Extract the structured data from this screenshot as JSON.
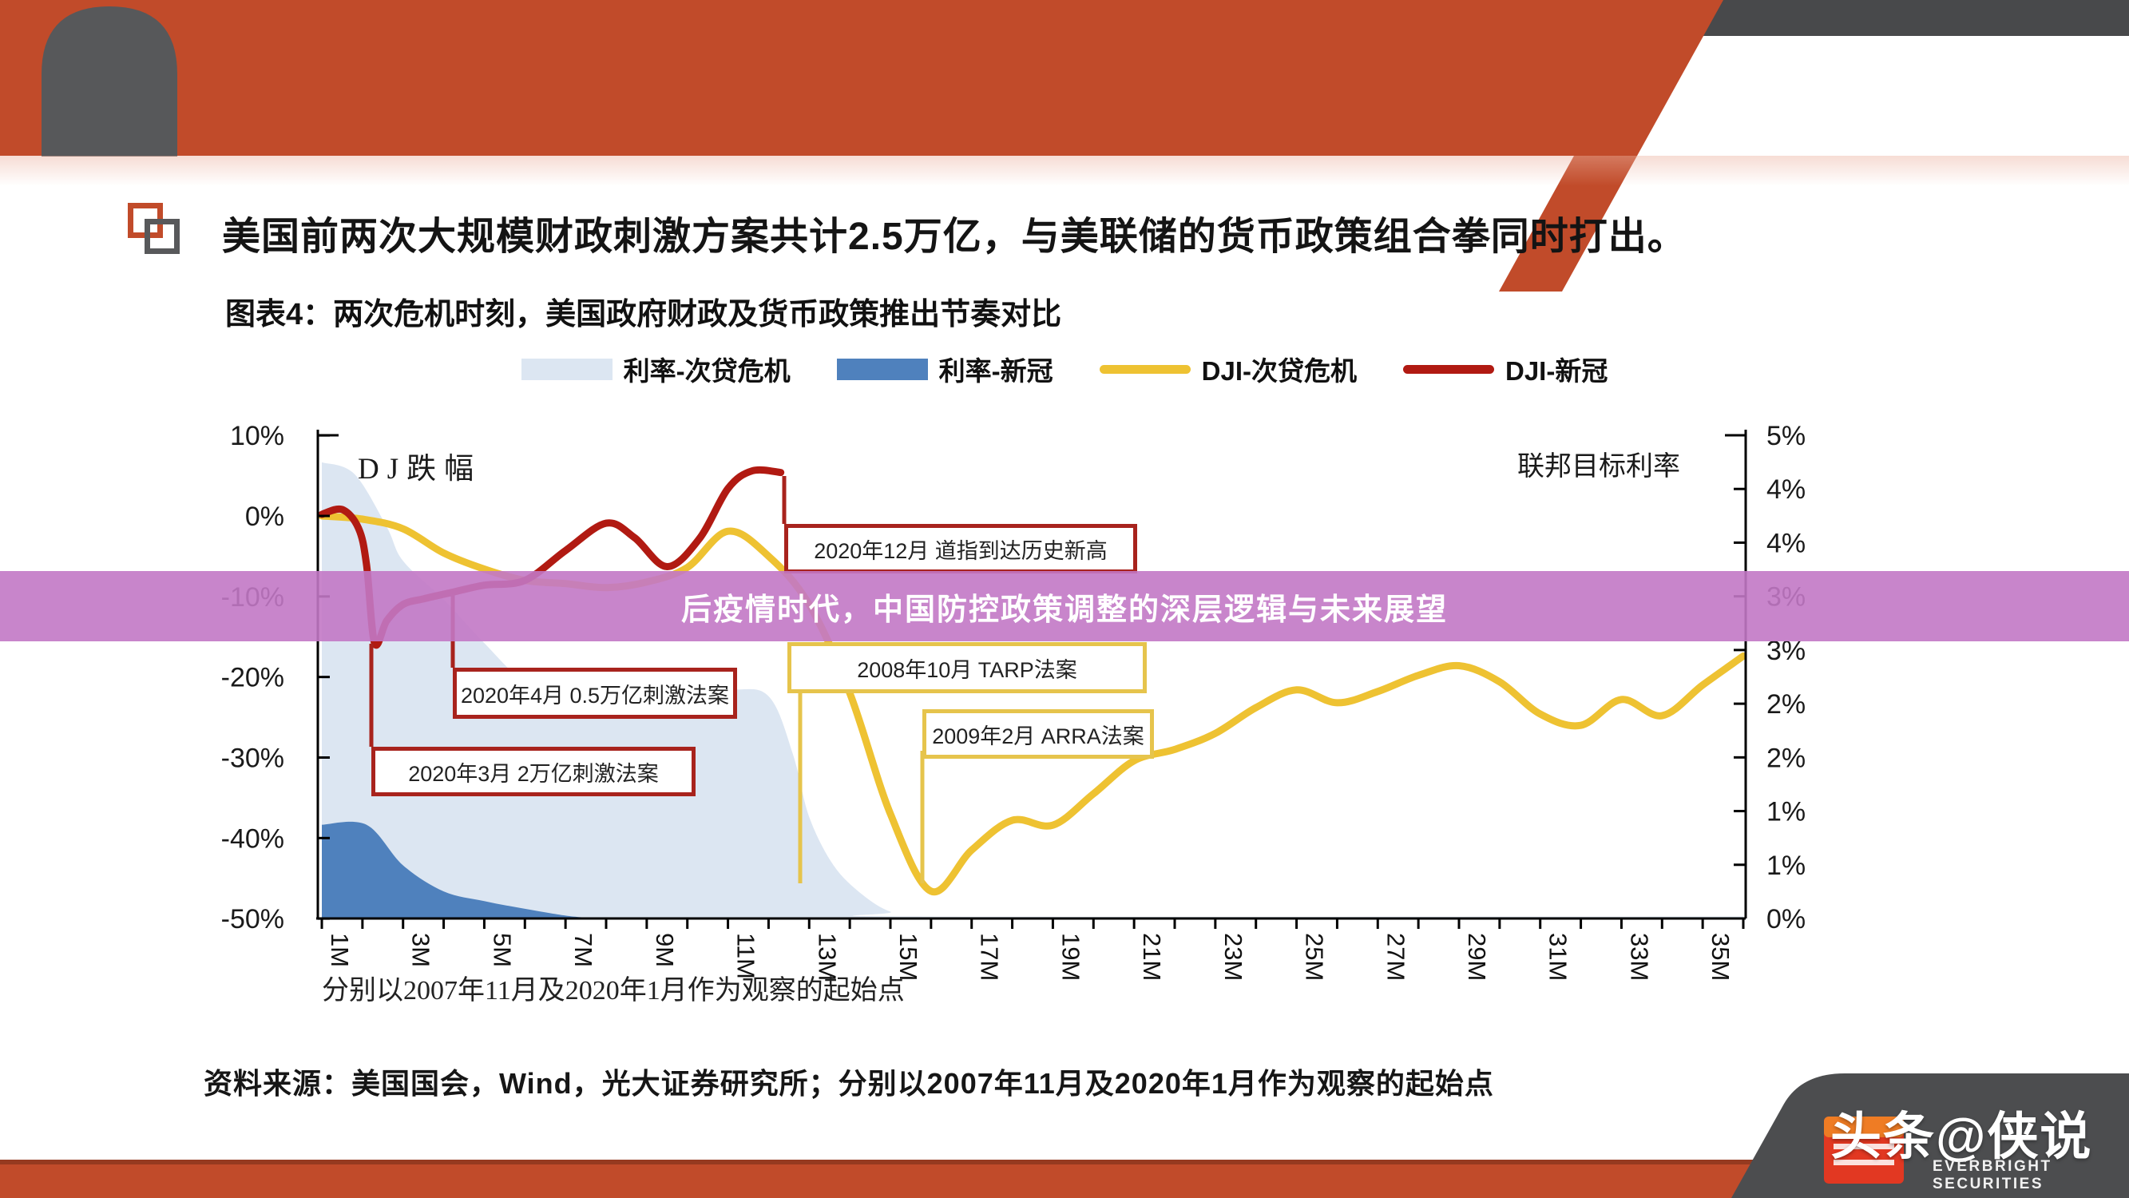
{
  "header": {
    "headline": "美国前两次大规模财政刺激方案共计2.5万亿，与美联储的货币政策组合拳同时打出。",
    "chart_title": "图表4：两次危机时刻，美国政府财政及货币政策推出节奏对比"
  },
  "overlay_banner": {
    "text": "后疫情时代，中国防控政策调整的深层逻辑与未来展望"
  },
  "footer": {
    "axis_note": "分别以2007年11月及2020年1月作为观察的起始点",
    "source": "资料来源：美国国会，Wind，光大证券研究所；分别以2007年11月及2020年1月作为观察的起始点"
  },
  "watermark": {
    "cn": "头条@侠说",
    "en": "EVERBRIGHT SECURITIES"
  },
  "chart_data": {
    "type": "line",
    "title": "图表4：两次危机时刻，美国政府财政及货币政策推出节奏对比",
    "x_axis": {
      "unit": "月（危机起点后的月数）",
      "tick_labels": [
        "1M",
        "3M",
        "5M",
        "7M",
        "9M",
        "11M",
        "13M",
        "15M",
        "17M",
        "19M",
        "21M",
        "23M",
        "25M",
        "27M",
        "29M",
        "31M",
        "33M",
        "35M"
      ],
      "months_shown": 36,
      "note": "分别以2007年11月及2020年1月作为观察的起始点"
    },
    "left_axis": {
      "label": "DJ跌幅",
      "tick_labels": [
        "10%",
        "0%",
        "-10%",
        "-20%",
        "-30%",
        "-40%",
        "-50%"
      ],
      "range": [
        10,
        -50
      ]
    },
    "right_axis": {
      "label": "联邦目标利率",
      "tick_labels": [
        "5%",
        "4%",
        "4%",
        "3%",
        "3%",
        "2%",
        "2%",
        "1%",
        "1%",
        "0%"
      ],
      "range": [
        5,
        0
      ]
    },
    "legend": [
      {
        "label": "利率-次贷危机",
        "swatch": "area",
        "color": "#dce6f2"
      },
      {
        "label": "利率-新冠",
        "swatch": "area",
        "color": "#4f81bd"
      },
      {
        "label": "DJI-次贷危机",
        "swatch": "line",
        "color": "#eec232"
      },
      {
        "label": "DJI-新冠",
        "swatch": "line",
        "color": "#b11a12"
      }
    ],
    "series": [
      {
        "name": "利率-次贷危机",
        "type": "area",
        "axis": "right",
        "color": "#dce6f2",
        "points": [
          [
            1,
            4.72
          ],
          [
            1.8,
            4.6
          ],
          [
            2.6,
            4.05
          ],
          [
            3,
            3.7
          ],
          [
            4,
            3.3
          ],
          [
            5,
            2.85
          ],
          [
            6,
            2.45
          ],
          [
            7,
            2.37
          ],
          [
            9,
            2.37
          ],
          [
            11,
            2.37
          ],
          [
            12,
            2.3
          ],
          [
            12.6,
            1.7
          ],
          [
            13,
            1.05
          ],
          [
            13.6,
            0.55
          ],
          [
            14.3,
            0.25
          ],
          [
            15,
            0.07
          ],
          [
            15.8,
            0.02
          ],
          [
            36,
            0.02
          ]
        ]
      },
      {
        "name": "利率-新冠",
        "type": "area",
        "axis": "right",
        "color": "#4f81bd",
        "points": [
          [
            1,
            0.97
          ],
          [
            2.1,
            0.97
          ],
          [
            3,
            0.55
          ],
          [
            4,
            0.28
          ],
          [
            5,
            0.18
          ],
          [
            6,
            0.1
          ],
          [
            7,
            0.03
          ],
          [
            7.6,
            0.005
          ]
        ]
      },
      {
        "name": "DJI-次贷危机",
        "type": "line",
        "axis": "left",
        "color": "#eec232",
        "points": [
          [
            1,
            0
          ],
          [
            2,
            -0.4
          ],
          [
            3,
            -1.6
          ],
          [
            4,
            -4.6
          ],
          [
            5,
            -6.6
          ],
          [
            6,
            -8
          ],
          [
            7,
            -8.4
          ],
          [
            8,
            -8.9
          ],
          [
            9,
            -8.2
          ],
          [
            10,
            -6.4
          ],
          [
            11,
            -1.9
          ],
          [
            12,
            -5
          ],
          [
            13,
            -11
          ],
          [
            14,
            -22
          ],
          [
            15,
            -37
          ],
          [
            16,
            -46.6
          ],
          [
            17,
            -41.5
          ],
          [
            18,
            -37.8
          ],
          [
            19,
            -38.4
          ],
          [
            20,
            -34.5
          ],
          [
            21,
            -30.4
          ],
          [
            22,
            -29
          ],
          [
            23,
            -27
          ],
          [
            24,
            -23.8
          ],
          [
            25,
            -21.6
          ],
          [
            26,
            -23.2
          ],
          [
            27,
            -21.8
          ],
          [
            28,
            -19.8
          ],
          [
            29,
            -18.6
          ],
          [
            30,
            -20.6
          ],
          [
            31,
            -24.6
          ],
          [
            32,
            -26
          ],
          [
            33,
            -22.8
          ],
          [
            34,
            -24.8
          ],
          [
            35,
            -21
          ],
          [
            36,
            -17.4
          ]
        ]
      },
      {
        "name": "DJI-新冠",
        "type": "line",
        "axis": "left",
        "color": "#b11a12",
        "points": [
          [
            1,
            0.2
          ],
          [
            1.5,
            0.8
          ],
          [
            1.9,
            -1.5
          ],
          [
            2.1,
            -6
          ],
          [
            2.3,
            -15.8
          ],
          [
            2.6,
            -13
          ],
          [
            3,
            -11
          ],
          [
            3.5,
            -10.3
          ],
          [
            4.2,
            -9.5
          ],
          [
            5,
            -8.6
          ],
          [
            6,
            -8
          ],
          [
            7,
            -4.3
          ],
          [
            8,
            -0.9
          ],
          [
            8.7,
            -2.7
          ],
          [
            9.5,
            -6.3
          ],
          [
            10.3,
            -2.8
          ],
          [
            11,
            3.4
          ],
          [
            11.6,
            5.6
          ],
          [
            12.3,
            5.4
          ]
        ]
      }
    ],
    "annotations": [
      {
        "id": "dec2020",
        "label": "2020年12月  道指到达历史新高",
        "border": "red"
      },
      {
        "id": "apr2020",
        "label": "2020年4月  0.5万亿刺激法案",
        "border": "red"
      },
      {
        "id": "mar2020",
        "label": "2020年3月  2万亿刺激法案",
        "border": "red"
      },
      {
        "id": "tarp",
        "label": "2008年10月  TARP法案",
        "border": "yellow"
      },
      {
        "id": "arra",
        "label": "2009年2月  ARRA法案",
        "border": "yellow"
      }
    ],
    "grid": false,
    "legend_position": "top"
  },
  "colors": {
    "band_orange": "#c14b2a",
    "band_dark_line": "#963a20",
    "strip_gray": "#48494b",
    "dome_gray": "#57585a",
    "banner_purple": "#c278c5",
    "area_light_blue": "#dce6f2",
    "area_steel_blue": "#4f81bd",
    "line_yellow": "#eec232",
    "line_red": "#b11a12",
    "box_red_border": "#a8231d",
    "box_yellow_border": "#e6c44c",
    "logo_block_gray": "#4c4d4f",
    "logo_red": "#e23822"
  }
}
